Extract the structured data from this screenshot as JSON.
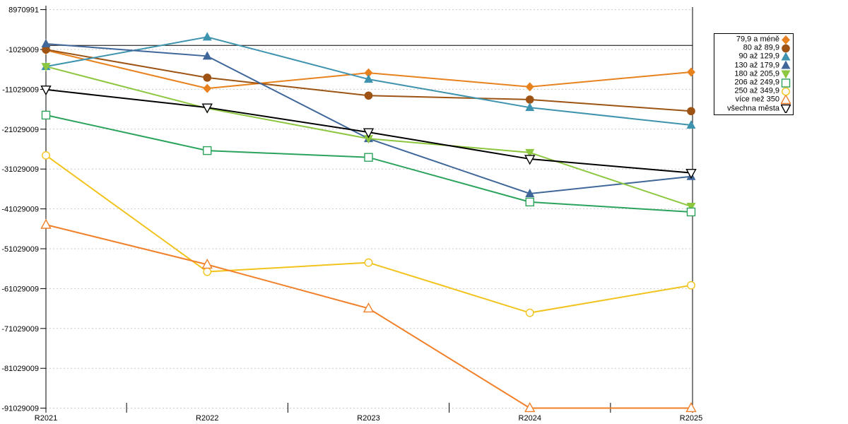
{
  "chart_data": {
    "type": "line",
    "title": "",
    "xlabel": "",
    "ylabel": "",
    "categories": [
      "R2021",
      "R2022",
      "R2023",
      "R2024",
      "R2025"
    ],
    "y_ticks": [
      8970991,
      -1029009,
      -11029009,
      -21029009,
      -31029009,
      -41029009,
      -51029009,
      -61029009,
      -71029009,
      -81029009,
      -91029009
    ],
    "y_tick_interval": 10000000,
    "ylim": [
      -93000000,
      9000000
    ],
    "grid": "horizontal-dashed",
    "zero_line": true,
    "legend_position": "right",
    "series": [
      {
        "name": "79,9 a méně",
        "color": "#E8821E",
        "marker": "diamond-filled",
        "values": [
          -1200000,
          -10800000,
          -6900000,
          -10400000,
          -6700000
        ]
      },
      {
        "name": "80 až 89,9",
        "color": "#9C5313",
        "marker": "circle-filled",
        "values": [
          -1050000,
          -8100000,
          -12600000,
          -13600000,
          -16500000
        ]
      },
      {
        "name": "90 až 129,9",
        "color": "#3E93AE",
        "marker": "triangle-up-filled",
        "values": [
          -5300000,
          2100000,
          -8500000,
          -15600000,
          -20000000
        ]
      },
      {
        "name": "130 až 179,9",
        "color": "#40679A",
        "marker": "triangle-up-filled",
        "values": [
          400000,
          -2700000,
          -23400000,
          -37200000,
          -32900000
        ]
      },
      {
        "name": "180 až 205,9",
        "color": "#8DC63F",
        "marker": "triangle-down-filled",
        "values": [
          -5300000,
          -15800000,
          -23400000,
          -26900000,
          -40400000
        ]
      },
      {
        "name": "206 až 249,9",
        "color": "#2BA35C",
        "marker": "square-open",
        "values": [
          -17500000,
          -26400000,
          -28100000,
          -39300000,
          -41800000
        ]
      },
      {
        "name": "250 až 349,9",
        "color": "#F2C31C",
        "marker": "circle-open",
        "values": [
          -27600000,
          -56800000,
          -54500000,
          -67100000,
          -60200000
        ]
      },
      {
        "name": "více než 350",
        "color": "#F0802A",
        "marker": "triangle-up-open",
        "values": [
          -45000000,
          -55000000,
          -66000000,
          -91000000,
          -91000000
        ]
      },
      {
        "name": "všechna města",
        "color": "#000000",
        "marker": "triangle-down-open",
        "values": [
          -11100000,
          -15600000,
          -21800000,
          -28500000,
          -32000000
        ]
      }
    ]
  }
}
